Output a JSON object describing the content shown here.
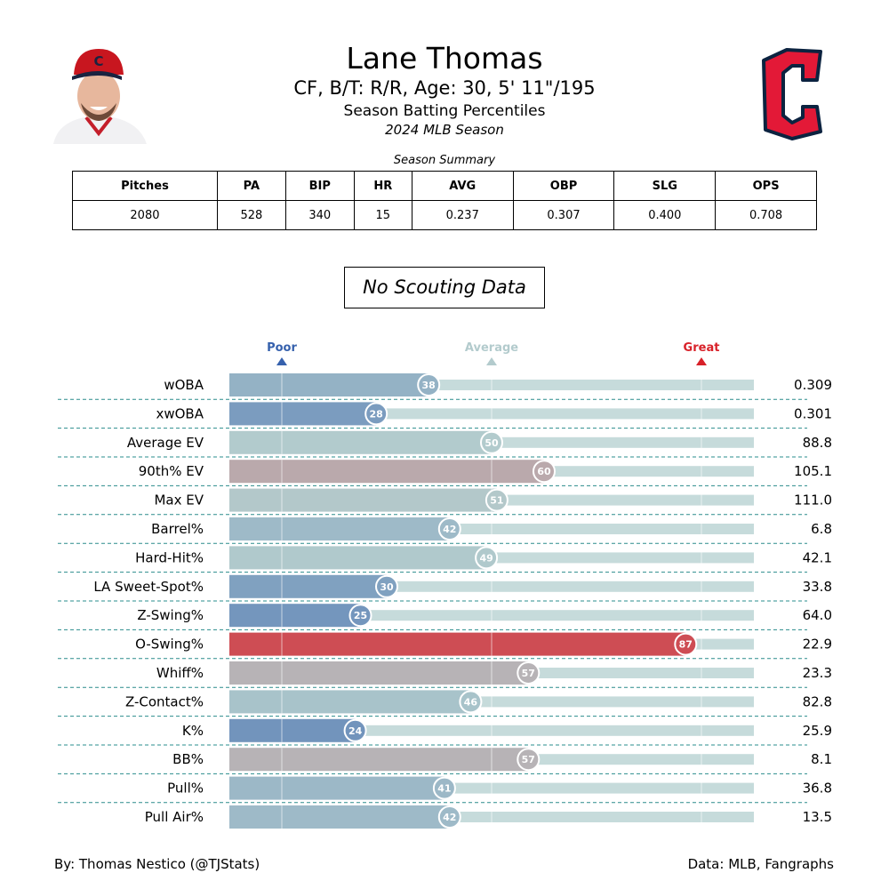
{
  "header": {
    "title": "Lane Thomas",
    "line1": "CF, B/T: R/R, Age: 30, 5' 11\"/195",
    "line2": "Season Batting Percentiles",
    "line3": "2024 MLB Season"
  },
  "summary": {
    "caption": "Season Summary",
    "columns": [
      "Pitches",
      "PA",
      "BIP",
      "HR",
      "AVG",
      "OBP",
      "SLG",
      "OPS"
    ],
    "values": [
      "2080",
      "528",
      "340",
      "15",
      "0.237",
      "0.307",
      "0.400",
      "0.708"
    ]
  },
  "scouting": "No Scouting Data",
  "footer": {
    "left": "By: Thomas Nestico (@TJStats)",
    "right": "Data: MLB, Fangraphs"
  },
  "images": {
    "headshot": "player-headshot",
    "logo": "cleveland-guardians-logo"
  },
  "chart_data": {
    "type": "bar",
    "orientation": "horizontal",
    "xlim": [
      0,
      100
    ],
    "markers": [
      {
        "label": "Poor",
        "value": 10,
        "color": "#3661ad"
      },
      {
        "label": "Average",
        "value": 50,
        "color": "#b3cbcd"
      },
      {
        "label": "Great",
        "value": 90,
        "color": "#d82129"
      }
    ],
    "categories": [
      "wOBA",
      "xwOBA",
      "Average EV",
      "90th% EV",
      "Max EV",
      "Barrel%",
      "Hard-Hit%",
      "LA Sweet-Spot%",
      "Z-Swing%",
      "O-Swing%",
      "Whiff%",
      "Z-Contact%",
      "K%",
      "BB%",
      "Pull%",
      "Pull Air%"
    ],
    "percentiles": [
      38,
      28,
      50,
      60,
      51,
      42,
      49,
      30,
      25,
      87,
      57,
      46,
      24,
      57,
      41,
      42
    ],
    "stat_values": [
      "0.309",
      "0.301",
      "88.8",
      "105.1",
      "111.0",
      "6.8",
      "42.1",
      "33.8",
      "64.0",
      "22.9",
      "23.3",
      "82.8",
      "25.9",
      "8.1",
      "36.8",
      "13.5"
    ]
  }
}
